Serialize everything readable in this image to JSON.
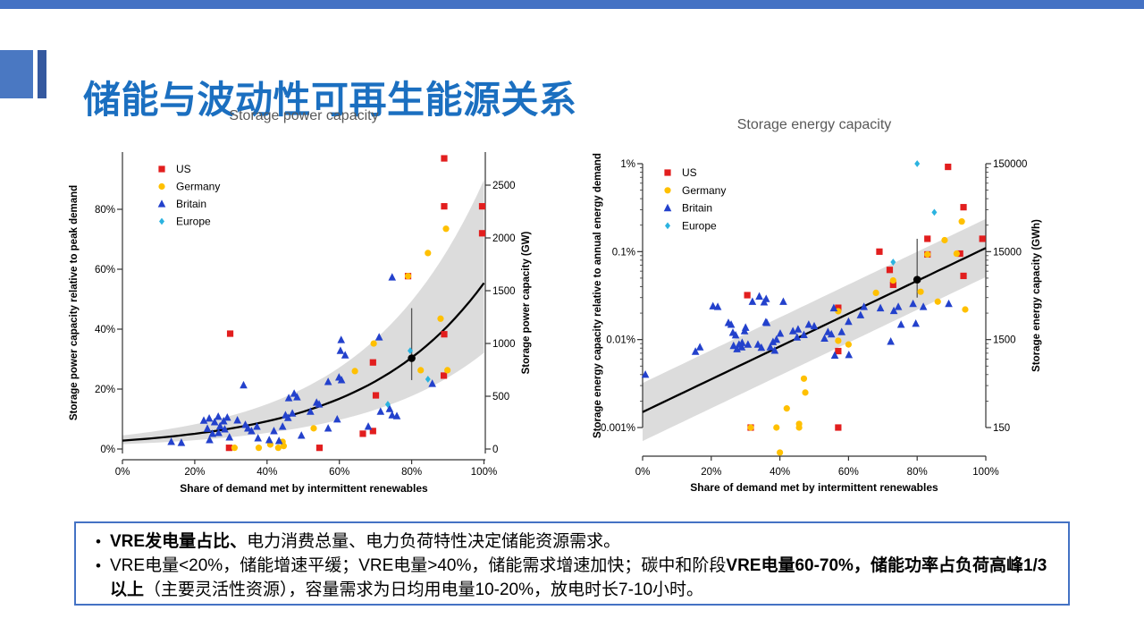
{
  "slide": {
    "title": "储能与波动性可再生能源关系",
    "title_color": "#1B6FC0",
    "top_bar_color": "#4472C4",
    "accent_square_color": "#4A78C2",
    "accent_bar_color": "#35599F"
  },
  "chart_data": [
    {
      "type": "scatter",
      "title": "Storage power capacity",
      "xlabel": "Share of demand met by intermittent renewables",
      "ylabel_left": "Storage power capacity relative to peak demand",
      "ylabel_right": "Storage power capacity (GW)",
      "x_tick_vals": [
        0,
        20,
        40,
        60,
        80,
        100
      ],
      "x_ticks": [
        "0%",
        "20%",
        "40%",
        "60%",
        "80%",
        "100%"
      ],
      "y_scale": "linear",
      "y_tick_vals_left": [
        0,
        20,
        40,
        60,
        80
      ],
      "y_ticks_left": [
        "0%",
        "20%",
        "40%",
        "60%",
        "80%"
      ],
      "y_tick_vals_right": [
        0,
        500,
        1000,
        1500,
        2000,
        2500
      ],
      "y_ticks_right": [
        "0",
        "500",
        "1000",
        "1500",
        "2000",
        "2500"
      ],
      "xlim": [
        0,
        100
      ],
      "ylim": [
        0,
        99
      ],
      "grid": false,
      "legend_position": "top-left",
      "title_color": "#595959",
      "trend": {
        "shape": "exponential",
        "y_at_0": 2.8,
        "y_at_100": 55.4,
        "band_low_mult": 0.58,
        "band_high_mult": 1.62,
        "line_color": "#000000",
        "band_color": "#dcdcdc"
      },
      "fit_point": {
        "x": 80,
        "y": 30.3,
        "y_lo": 23,
        "y_hi": 47
      },
      "series": [
        {
          "name": "US",
          "marker": "square",
          "color": "#E21E1E",
          "points": [
            [
              29.8,
              38.5
            ],
            [
              29.5,
              0.4
            ],
            [
              54.5,
              0.4
            ],
            [
              66.5,
              5.1
            ],
            [
              69.3,
              6
            ],
            [
              69.3,
              28.9
            ],
            [
              70.1,
              17.9
            ],
            [
              79,
              57.7
            ],
            [
              88.9,
              24.5
            ],
            [
              89,
              38.3
            ],
            [
              89,
              81
            ],
            [
              89,
              97
            ],
            [
              99.5,
              81
            ],
            [
              99.5,
              72
            ]
          ]
        },
        {
          "name": "Germany",
          "marker": "circle",
          "color": "#FFC000",
          "points": [
            [
              31,
              0.4
            ],
            [
              37.7,
              0.4
            ],
            [
              40.9,
              1.5
            ],
            [
              43.1,
              0.4
            ],
            [
              44.6,
              1
            ],
            [
              44.3,
              2.4
            ],
            [
              52.9,
              6.9
            ],
            [
              64.3,
              26
            ],
            [
              69.5,
              35.2
            ],
            [
              79,
              57.7
            ],
            [
              82.5,
              26.3
            ],
            [
              84.5,
              65.4
            ],
            [
              88,
              43.5
            ],
            [
              89.5,
              73.5
            ],
            [
              89.9,
              26.3
            ]
          ]
        },
        {
          "name": "Britain",
          "marker": "triangle",
          "color": "#2341CC",
          "points": [
            [
              13.5,
              2.4
            ],
            [
              16.3,
              2.1
            ],
            [
              22.5,
              9.5
            ],
            [
              23.5,
              6.8
            ],
            [
              24,
              10.2
            ],
            [
              24.9,
              5.1
            ],
            [
              25.5,
              9
            ],
            [
              26.5,
              10.8
            ],
            [
              26.6,
              5.4
            ],
            [
              27,
              7.6
            ],
            [
              28,
              9.3
            ],
            [
              28.3,
              6.6
            ],
            [
              29,
              10.5
            ],
            [
              29.6,
              3.9
            ],
            [
              24.1,
              3
            ],
            [
              31.8,
              9.6
            ],
            [
              33.5,
              21.3
            ],
            [
              34,
              8.1
            ],
            [
              34.7,
              6.9
            ],
            [
              35.7,
              6
            ],
            [
              37.2,
              7.5
            ],
            [
              37.5,
              3.6
            ],
            [
              40.6,
              3
            ],
            [
              41.9,
              6
            ],
            [
              43.3,
              2.7
            ],
            [
              44.3,
              7.5
            ],
            [
              45.1,
              11.3
            ],
            [
              45.8,
              10.4
            ],
            [
              46,
              17
            ],
            [
              47,
              11.9
            ],
            [
              47.5,
              18.5
            ],
            [
              48.3,
              17.3
            ],
            [
              49.5,
              4.5
            ],
            [
              52,
              12.5
            ],
            [
              53.7,
              15.5
            ],
            [
              54.4,
              14.9
            ],
            [
              56.9,
              6.9
            ],
            [
              56.9,
              22.4
            ],
            [
              59.4,
              9.9
            ],
            [
              59.9,
              23.9
            ],
            [
              60.6,
              23
            ],
            [
              60.3,
              32.8
            ],
            [
              61.6,
              31.3
            ],
            [
              60.5,
              36.4
            ],
            [
              68,
              7.5
            ],
            [
              71,
              37.3
            ],
            [
              71.4,
              12.5
            ],
            [
              73.9,
              13.4
            ],
            [
              74.6,
              11.3
            ],
            [
              74.6,
              57.3
            ],
            [
              75.9,
              11
            ],
            [
              85.7,
              21.8
            ]
          ]
        },
        {
          "name": "Europe",
          "marker": "diamond",
          "color": "#2BB3E0",
          "points": [
            [
              73.4,
              14.9
            ],
            [
              79.6,
              32.8
            ],
            [
              84.5,
              23.3
            ]
          ]
        }
      ]
    },
    {
      "type": "scatter",
      "title": "Storage energy capacity",
      "xlabel": "Share of demand met by intermittent renewables",
      "ylabel_left": "Storage energy capacity relative to annual energy demand",
      "ylabel_right": "Storage energy capacity (GWh)",
      "x_tick_vals": [
        0,
        20,
        40,
        60,
        80,
        100
      ],
      "x_ticks": [
        "0%",
        "20%",
        "40%",
        "60%",
        "80%",
        "100%"
      ],
      "y_scale": "log",
      "y_tick_vals_left": [
        1,
        0.1,
        0.01,
        0.001
      ],
      "y_ticks_left": [
        "1%",
        "0.1%",
        "0.01%",
        "0.001%"
      ],
      "y_tick_vals_right": [
        1,
        0.1,
        0.01,
        0.001
      ],
      "y_ticks_right": [
        "150000",
        "15000",
        "1500",
        "150"
      ],
      "xlim": [
        0,
        100
      ],
      "ylim": [
        0.001,
        1
      ],
      "grid": false,
      "legend_position": "top-left",
      "title_color": "#595959",
      "trend": {
        "shape": "exponential",
        "y_at_0": 0.0015,
        "y_at_100": 0.11,
        "band_low_mult": 0.468,
        "band_high_mult": 2.14,
        "line_color": "#000000",
        "band_color": "#dcdcdc"
      },
      "fit_point": {
        "x": 80,
        "y": 0.048,
        "y_lo": 0.03,
        "y_hi": 0.14
      },
      "series": [
        {
          "name": "US",
          "marker": "square",
          "color": "#E21E1E",
          "points": [
            [
              30.5,
              0.032
            ],
            [
              31.5,
              0.001
            ],
            [
              57,
              0.023
            ],
            [
              57,
              0.0074
            ],
            [
              57,
              0.001
            ],
            [
              69,
              0.1
            ],
            [
              72,
              0.062
            ],
            [
              73,
              0.042
            ],
            [
              83,
              0.14
            ],
            [
              83,
              0.093
            ],
            [
              89,
              0.92
            ],
            [
              92.5,
              0.095
            ],
            [
              93.5,
              0.053
            ],
            [
              93.5,
              0.32
            ],
            [
              99,
              0.14
            ]
          ]
        },
        {
          "name": "Germany",
          "marker": "circle",
          "color": "#FFC000",
          "points": [
            [
              31.5,
              0.001
            ],
            [
              39,
              0.001
            ],
            [
              40,
              0.00052
            ],
            [
              42,
              0.00165
            ],
            [
              45.6,
              0.0011
            ],
            [
              45.6,
              0.001
            ],
            [
              47,
              0.0036
            ],
            [
              47.4,
              0.0025
            ],
            [
              57,
              0.021
            ],
            [
              57,
              0.0097
            ],
            [
              60,
              0.0088
            ],
            [
              68,
              0.034
            ],
            [
              73,
              0.047
            ],
            [
              81,
              0.035
            ],
            [
              83,
              0.093
            ],
            [
              86,
              0.027
            ],
            [
              88,
              0.135
            ],
            [
              91.5,
              0.095
            ],
            [
              93,
              0.22
            ],
            [
              94,
              0.022
            ]
          ]
        },
        {
          "name": "Britain",
          "marker": "triangle",
          "color": "#2341CC",
          "points": [
            [
              0.8,
              0.004
            ],
            [
              15.4,
              0.0073
            ],
            [
              16.7,
              0.0082
            ],
            [
              20.5,
              0.024
            ],
            [
              21.9,
              0.0236
            ],
            [
              25,
              0.0155
            ],
            [
              25.8,
              0.0148
            ],
            [
              26.3,
              0.012
            ],
            [
              26.5,
              0.0085
            ],
            [
              27.1,
              0.0112
            ],
            [
              27.5,
              0.0078
            ],
            [
              28.1,
              0.0088
            ],
            [
              28.9,
              0.0082
            ],
            [
              29,
              0.0092
            ],
            [
              29.7,
              0.0125
            ],
            [
              30,
              0.0137
            ],
            [
              30.7,
              0.0088
            ],
            [
              32,
              0.027
            ],
            [
              33.6,
              0.0088
            ],
            [
              34,
              0.031
            ],
            [
              34.6,
              0.0081
            ],
            [
              35.4,
              0.0266
            ],
            [
              35.9,
              0.0158
            ],
            [
              36,
              0.029
            ],
            [
              36.2,
              0.0155
            ],
            [
              37.2,
              0.0082
            ],
            [
              38,
              0.0094
            ],
            [
              38.5,
              0.0075
            ],
            [
              39,
              0.01
            ],
            [
              40.1,
              0.0117
            ],
            [
              41,
              0.027
            ],
            [
              43.8,
              0.0125
            ],
            [
              45,
              0.0106
            ],
            [
              45.3,
              0.0131
            ],
            [
              47,
              0.0113
            ],
            [
              48.4,
              0.0148
            ],
            [
              50,
              0.0142
            ],
            [
              53,
              0.0103
            ],
            [
              54,
              0.0122
            ],
            [
              55,
              0.0115
            ],
            [
              55.7,
              0.0228
            ],
            [
              56,
              0.0066
            ],
            [
              58,
              0.0122
            ],
            [
              60,
              0.016
            ],
            [
              60.1,
              0.0067
            ],
            [
              63.5,
              0.019
            ],
            [
              64.5,
              0.0236
            ],
            [
              69.3,
              0.0228
            ],
            [
              72.3,
              0.0095
            ],
            [
              73.2,
              0.0212
            ],
            [
              74.5,
              0.0236
            ],
            [
              75.3,
              0.0148
            ],
            [
              78.8,
              0.0255
            ],
            [
              79.6,
              0.0152
            ],
            [
              81.8,
              0.0236
            ],
            [
              89.2,
              0.0255
            ]
          ]
        },
        {
          "name": "Europe",
          "marker": "diamond",
          "color": "#2BB3E0",
          "points": [
            [
              73,
              0.076
            ],
            [
              80,
              1.0
            ],
            [
              85,
              0.28
            ]
          ]
        }
      ]
    }
  ],
  "notes": {
    "border_color": "#4472C4",
    "bullets": [
      [
        {
          "t": "VRE发电量占比、",
          "b": true
        },
        {
          "t": "电力消费总量、电力负荷特性决定储能资源需求。",
          "b": false
        }
      ],
      [
        {
          "t": "VRE电量<20%，储能增速平缓；VRE电量>40%，储能需求增速加快；碳中和阶段",
          "b": false
        },
        {
          "t": "VRE电量60-70%，储能功率占负荷高峰1/3以上",
          "b": true
        },
        {
          "t": "（主要灵活性资源），容量需求为日均用电量10-20%，放电时长7-10小时。",
          "b": false
        }
      ]
    ]
  }
}
